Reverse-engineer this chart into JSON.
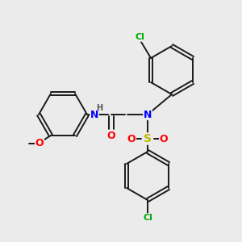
{
  "bg_color": "#ebebeb",
  "bond_color": "#1a1a1a",
  "atom_colors": {
    "N": "#0000ff",
    "O": "#ff0000",
    "S": "#bbbb00",
    "Cl": "#00aa00",
    "H": "#555555"
  },
  "figsize": [
    3.0,
    3.0
  ],
  "dpi": 100,
  "ring_r": 30,
  "lw": 1.4
}
